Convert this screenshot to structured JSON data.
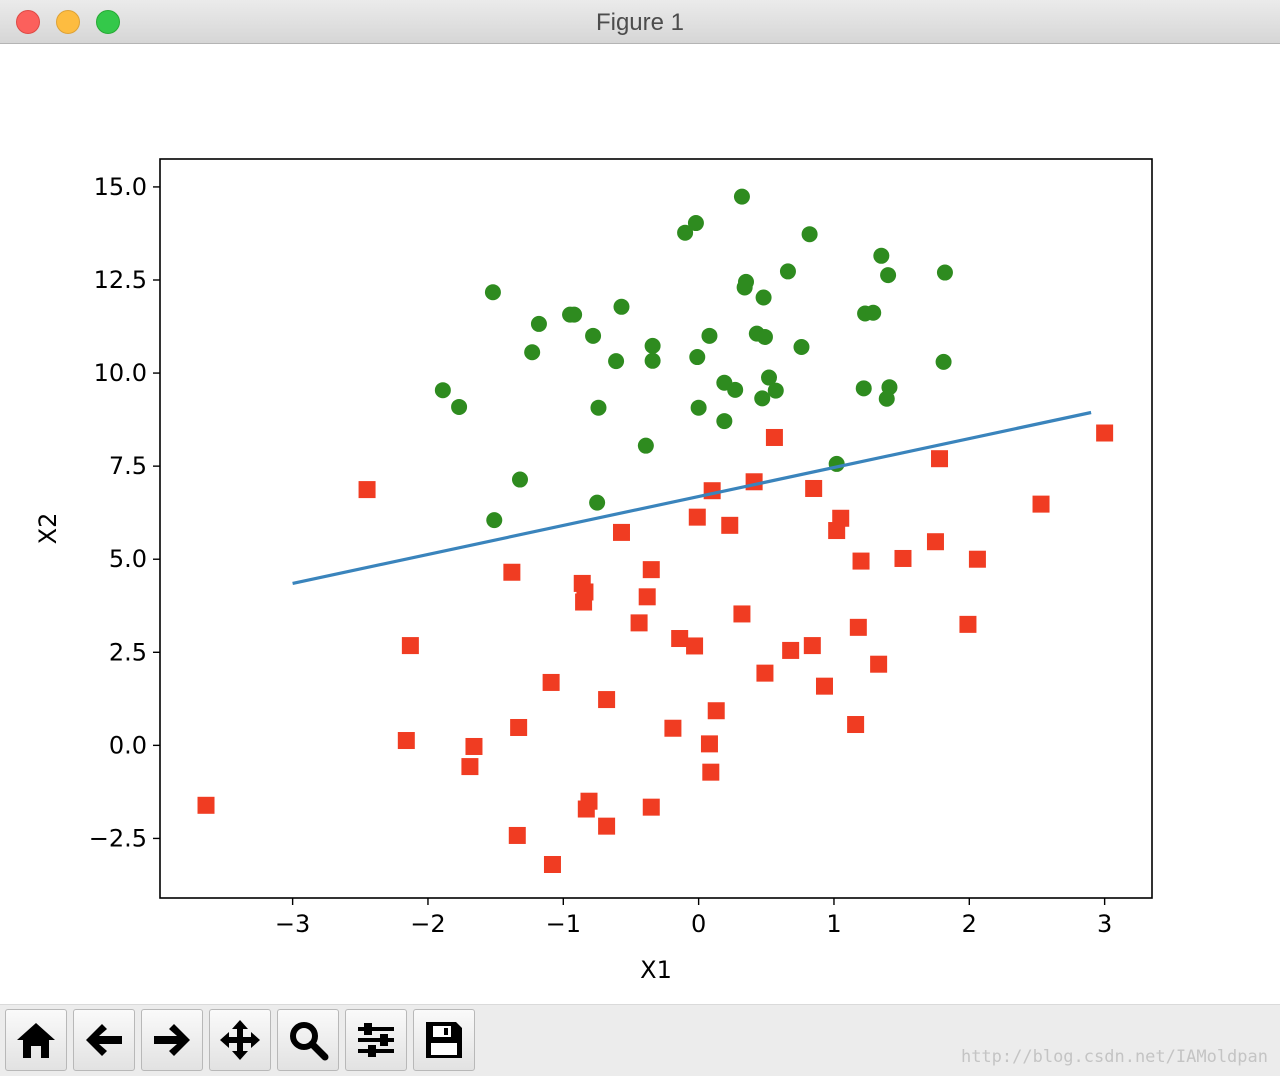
{
  "window": {
    "title": "Figure 1"
  },
  "toolbar": {
    "buttons": [
      {
        "name": "home-button",
        "icon": "home-icon"
      },
      {
        "name": "back-button",
        "icon": "arrow-left-icon"
      },
      {
        "name": "forward-button",
        "icon": "arrow-right-icon"
      },
      {
        "name": "pan-button",
        "icon": "move-icon"
      },
      {
        "name": "zoom-button",
        "icon": "search-icon"
      },
      {
        "name": "subplots-button",
        "icon": "sliders-icon"
      },
      {
        "name": "save-button",
        "icon": "floppy-disk-icon"
      }
    ],
    "watermark": "http://blog.csdn.net/IAMoldpan"
  },
  "chart_data": {
    "type": "scatter",
    "title": "",
    "xlabel": "X1",
    "ylabel": "X2",
    "xlim": [
      -3.98,
      3.35
    ],
    "ylim": [
      -4.1,
      15.75
    ],
    "xticks": [
      -3,
      -2,
      -1,
      0,
      1,
      2,
      3
    ],
    "xtick_labels": [
      "−3",
      "−2",
      "−1",
      "0",
      "1",
      "2",
      "3"
    ],
    "yticks": [
      -2.5,
      0.0,
      2.5,
      5.0,
      7.5,
      10.0,
      12.5,
      15.0
    ],
    "ytick_labels": [
      "−2.5",
      "0.0",
      "2.5",
      "5.0",
      "7.5",
      "10.0",
      "12.5",
      "15.0"
    ],
    "grid": false,
    "series": [
      {
        "marker": "circle",
        "color": "#2e8b1f",
        "points": [
          [
            0.32,
            14.74
          ],
          [
            -0.02,
            14.03
          ],
          [
            -0.1,
            13.77
          ],
          [
            0.82,
            13.73
          ],
          [
            1.35,
            13.15
          ],
          [
            0.66,
            12.73
          ],
          [
            0.35,
            12.45
          ],
          [
            0.34,
            12.3
          ],
          [
            1.82,
            12.7
          ],
          [
            1.4,
            12.63
          ],
          [
            -1.52,
            12.17
          ],
          [
            0.48,
            12.03
          ],
          [
            -0.57,
            11.78
          ],
          [
            -0.95,
            11.57
          ],
          [
            -0.92,
            11.57
          ],
          [
            1.23,
            11.6
          ],
          [
            1.29,
            11.62
          ],
          [
            -1.18,
            11.32
          ],
          [
            -0.78,
            11.0
          ],
          [
            0.08,
            11.0
          ],
          [
            0.43,
            11.06
          ],
          [
            0.49,
            10.97
          ],
          [
            -0.34,
            10.73
          ],
          [
            0.76,
            10.7
          ],
          [
            -1.23,
            10.56
          ],
          [
            -0.01,
            10.43
          ],
          [
            -0.61,
            10.32
          ],
          [
            -0.34,
            10.33
          ],
          [
            1.81,
            10.3
          ],
          [
            0.52,
            9.88
          ],
          [
            0.19,
            9.74
          ],
          [
            0.27,
            9.55
          ],
          [
            0.57,
            9.53
          ],
          [
            1.22,
            9.59
          ],
          [
            1.41,
            9.62
          ],
          [
            -1.89,
            9.54
          ],
          [
            0.47,
            9.32
          ],
          [
            1.39,
            9.31
          ],
          [
            -1.77,
            9.09
          ],
          [
            -0.74,
            9.07
          ],
          [
            0.0,
            9.07
          ],
          [
            0.19,
            8.71
          ],
          [
            -0.39,
            8.05
          ],
          [
            1.02,
            7.56
          ],
          [
            -1.32,
            7.14
          ],
          [
            -0.75,
            6.52
          ],
          [
            -1.51,
            6.05
          ]
        ]
      },
      {
        "marker": "square",
        "color": "#f03c22",
        "points": [
          [
            3.0,
            8.39
          ],
          [
            0.56,
            8.27
          ],
          [
            1.78,
            7.7
          ],
          [
            0.41,
            7.08
          ],
          [
            0.85,
            6.9
          ],
          [
            0.1,
            6.84
          ],
          [
            -2.45,
            6.87
          ],
          [
            2.53,
            6.48
          ],
          [
            -0.01,
            6.13
          ],
          [
            0.23,
            5.91
          ],
          [
            1.05,
            6.1
          ],
          [
            1.02,
            5.77
          ],
          [
            -0.57,
            5.72
          ],
          [
            1.75,
            5.47
          ],
          [
            1.51,
            5.02
          ],
          [
            2.06,
            5.0
          ],
          [
            1.2,
            4.95
          ],
          [
            -0.35,
            4.72
          ],
          [
            -1.38,
            4.65
          ],
          [
            -0.86,
            4.35
          ],
          [
            -0.84,
            4.12
          ],
          [
            -0.85,
            3.85
          ],
          [
            -0.38,
            3.99
          ],
          [
            0.32,
            3.53
          ],
          [
            -0.44,
            3.29
          ],
          [
            1.18,
            3.17
          ],
          [
            1.99,
            3.25
          ],
          [
            -0.14,
            2.87
          ],
          [
            -0.03,
            2.67
          ],
          [
            0.84,
            2.68
          ],
          [
            -2.13,
            2.68
          ],
          [
            0.68,
            2.55
          ],
          [
            1.33,
            2.18
          ],
          [
            0.49,
            1.94
          ],
          [
            -1.09,
            1.69
          ],
          [
            0.93,
            1.59
          ],
          [
            -0.68,
            1.23
          ],
          [
            0.13,
            0.93
          ],
          [
            1.16,
            0.56
          ],
          [
            -0.19,
            0.46
          ],
          [
            -1.33,
            0.48
          ],
          [
            -2.16,
            0.13
          ],
          [
            -1.66,
            -0.03
          ],
          [
            0.08,
            0.04
          ],
          [
            -1.69,
            -0.57
          ],
          [
            0.09,
            -0.72
          ],
          [
            -3.64,
            -1.61
          ],
          [
            -0.81,
            -1.5
          ],
          [
            -0.83,
            -1.71
          ],
          [
            -0.35,
            -1.66
          ],
          [
            -0.68,
            -2.17
          ],
          [
            -1.34,
            -2.42
          ],
          [
            -1.08,
            -3.2
          ]
        ]
      },
      {
        "marker": "line",
        "color": "#3a84bc",
        "points": [
          [
            -3.0,
            4.35
          ],
          [
            2.9,
            8.94
          ]
        ]
      }
    ]
  }
}
